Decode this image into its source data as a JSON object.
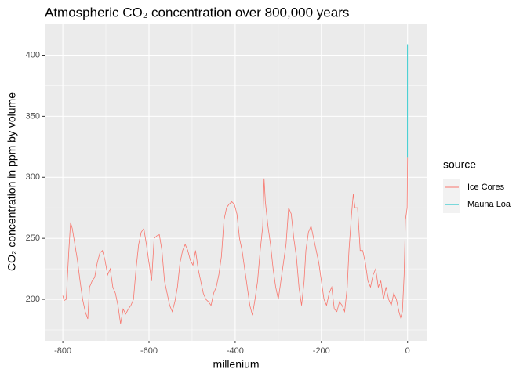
{
  "chart_data": {
    "type": "line",
    "title": "Atmospheric CO₂ concentration over 800,000 years",
    "x_label": "millenium",
    "y_label": "CO₂ concentration in ppm by volume",
    "legend_title": "source",
    "xlim": [
      -842,
      46
    ],
    "ylim": [
      166,
      426
    ],
    "xticks": [
      -800,
      -600,
      -400,
      -200,
      0
    ],
    "yticks": [
      200,
      250,
      300,
      350,
      400
    ],
    "grid": true,
    "series": [
      {
        "name": "Ice Cores",
        "color": "#F8766D",
        "x": [
          -800,
          -797,
          -792,
          -786,
          -782,
          -778,
          -772,
          -766,
          -760,
          -754,
          -748,
          -742,
          -738,
          -732,
          -726,
          -720,
          -714,
          -708,
          -702,
          -696,
          -690,
          -684,
          -678,
          -672,
          -666,
          -660,
          -654,
          -648,
          -642,
          -636,
          -630,
          -624,
          -618,
          -612,
          -606,
          -600,
          -594,
          -588,
          -582,
          -576,
          -570,
          -564,
          -558,
          -552,
          -546,
          -540,
          -534,
          -528,
          -522,
          -516,
          -510,
          -504,
          -498,
          -492,
          -486,
          -480,
          -474,
          -468,
          -462,
          -456,
          -450,
          -444,
          -438,
          -432,
          -426,
          -420,
          -414,
          -408,
          -402,
          -396,
          -390,
          -384,
          -378,
          -372,
          -366,
          -360,
          -354,
          -348,
          -342,
          -336,
          -333,
          -330,
          -324,
          -318,
          -312,
          -306,
          -300,
          -294,
          -288,
          -282,
          -276,
          -270,
          -264,
          -258,
          -252,
          -246,
          -240,
          -236,
          -230,
          -224,
          -218,
          -212,
          -206,
          -200,
          -194,
          -188,
          -182,
          -176,
          -170,
          -164,
          -158,
          -152,
          -146,
          -140,
          -136,
          -130,
          -126,
          -122,
          -116,
          -110,
          -104,
          -98,
          -92,
          -86,
          -80,
          -74,
          -68,
          -62,
          -56,
          -50,
          -44,
          -38,
          -32,
          -26,
          -20,
          -16,
          -12,
          -8,
          -5,
          -3,
          -1,
          0
        ],
        "values": [
          203,
          199,
          200,
          240,
          263,
          258,
          245,
          232,
          215,
          200,
          190,
          184,
          210,
          215,
          218,
          230,
          238,
          240,
          232,
          220,
          225,
          210,
          205,
          195,
          180,
          192,
          188,
          192,
          195,
          200,
          225,
          245,
          255,
          258,
          245,
          230,
          215,
          250,
          252,
          253,
          240,
          215,
          205,
          195,
          190,
          198,
          210,
          230,
          240,
          245,
          240,
          232,
          228,
          240,
          225,
          215,
          205,
          200,
          198,
          195,
          205,
          210,
          220,
          235,
          265,
          275,
          278,
          280,
          278,
          270,
          250,
          240,
          225,
          210,
          195,
          187,
          200,
          215,
          240,
          260,
          299,
          280,
          260,
          245,
          225,
          210,
          200,
          215,
          230,
          245,
          275,
          270,
          250,
          235,
          210,
          195,
          215,
          240,
          255,
          260,
          250,
          240,
          230,
          215,
          200,
          195,
          205,
          210,
          192,
          190,
          198,
          195,
          190,
          210,
          240,
          270,
          286,
          275,
          275,
          240,
          240,
          230,
          215,
          210,
          220,
          225,
          210,
          215,
          200,
          210,
          200,
          195,
          205,
          200,
          190,
          185,
          190,
          220,
          265,
          270,
          275,
          316
        ]
      },
      {
        "name": "Mauna Loa",
        "color": "#00BFC4",
        "x": [
          -0.04,
          -0.02,
          0
        ],
        "values": [
          316,
          360,
          409
        ]
      }
    ]
  }
}
